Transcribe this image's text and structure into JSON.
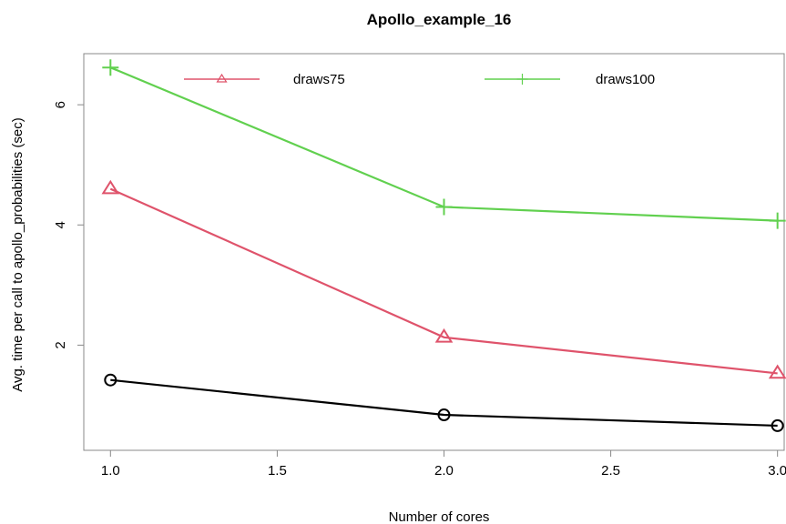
{
  "chart_data": {
    "type": "line",
    "title": "Apollo_example_16",
    "xlabel": "Number of cores",
    "ylabel": "Avg. time per call to apollo_probabilities (sec)",
    "x": [
      1,
      2,
      3
    ],
    "xlim": [
      0.92,
      3.02
    ],
    "ylim": [
      0.25,
      6.85
    ],
    "xticks": [
      "1.0",
      "1.5",
      "2.0",
      "2.5",
      "3.0"
    ],
    "xtick_values": [
      1,
      1.5,
      2,
      2.5,
      3
    ],
    "yticks": [
      "2",
      "4",
      "6"
    ],
    "ytick_values": [
      2,
      4,
      6
    ],
    "grid": false,
    "legend_position": "top",
    "series": [
      {
        "values": [
          1.42,
          0.84,
          0.66
        ],
        "color": "#000000",
        "marker": "circle"
      },
      {
        "name": "draws75",
        "values": [
          4.6,
          2.13,
          1.53
        ],
        "color": "#DF536B",
        "marker": "triangle"
      },
      {
        "name": "draws100",
        "values": [
          6.62,
          4.3,
          4.07
        ],
        "color": "#61D04F",
        "marker": "plus"
      }
    ]
  }
}
